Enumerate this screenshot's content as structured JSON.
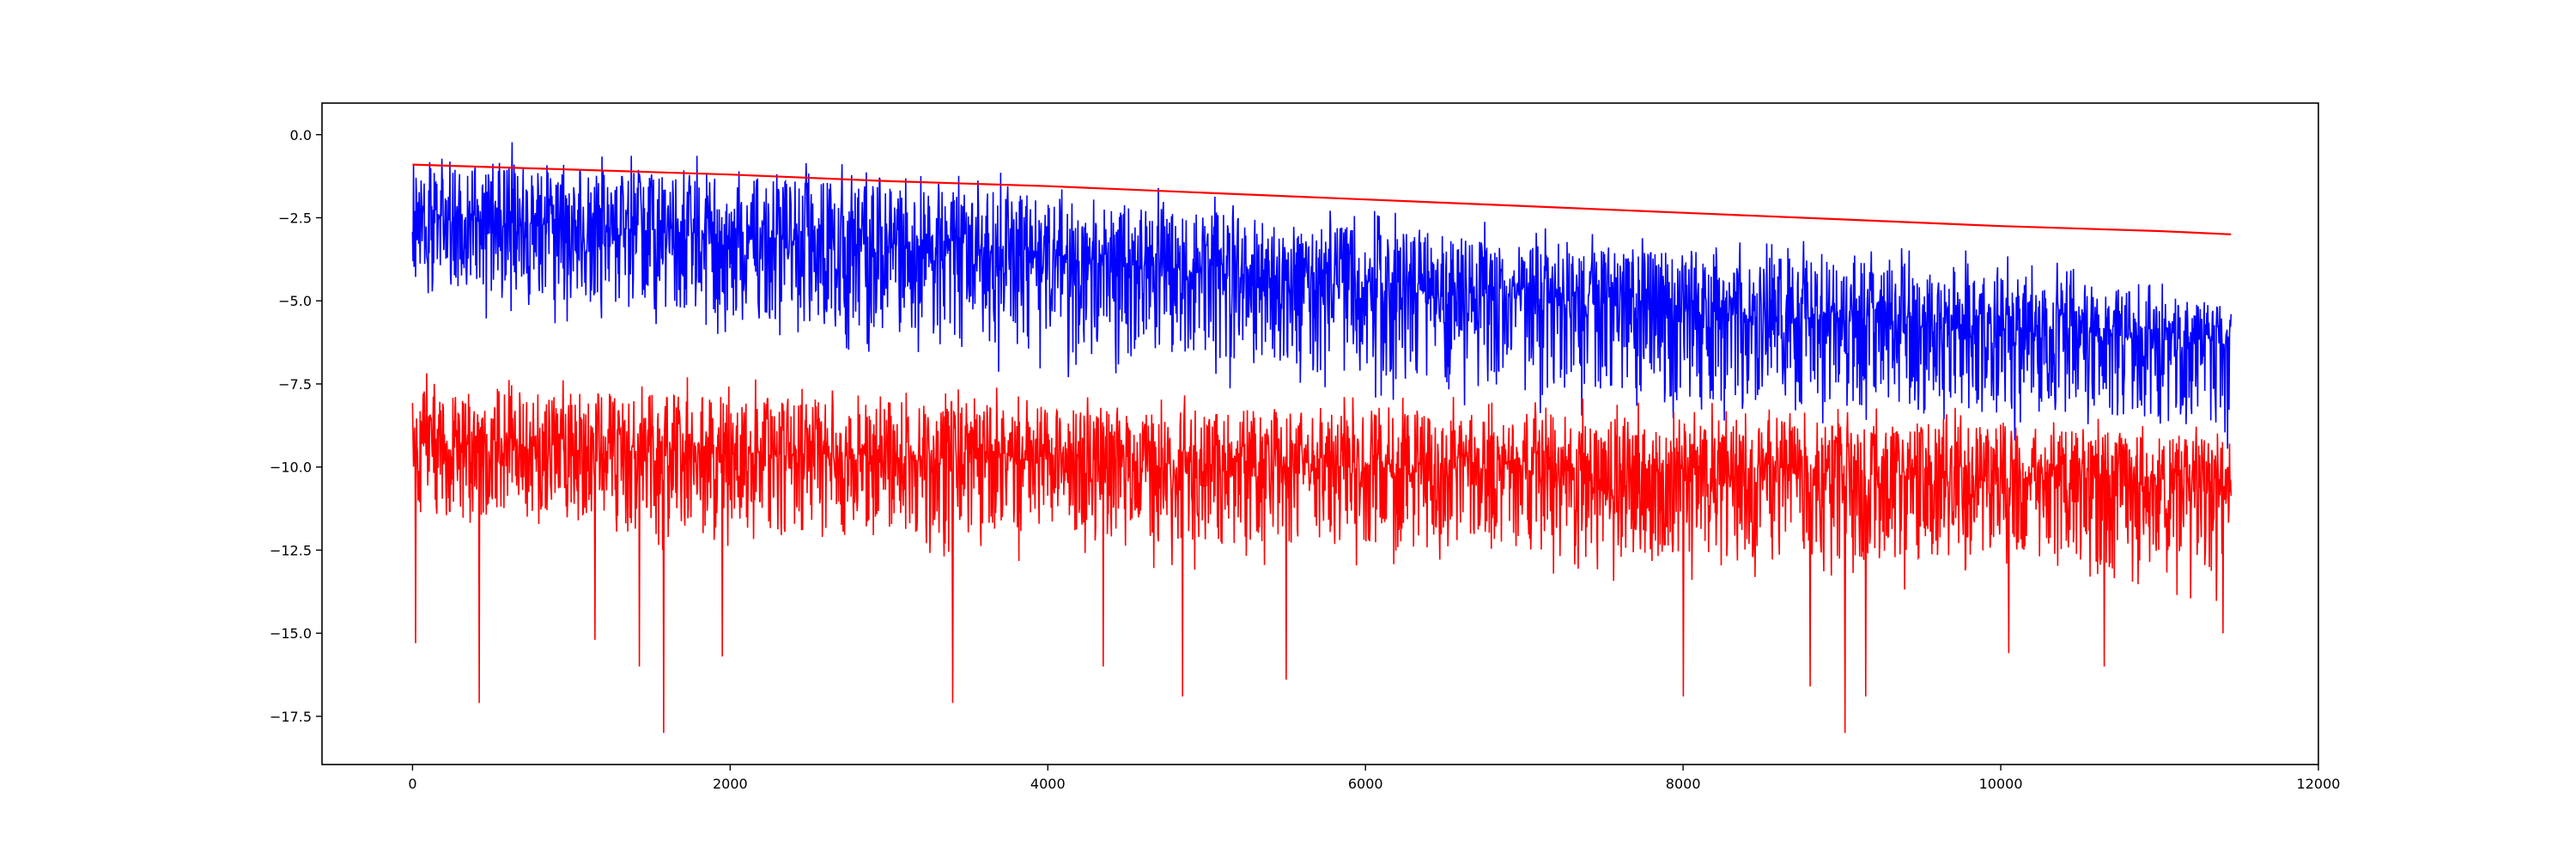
{
  "chart_data": {
    "type": "line",
    "title": "",
    "xlabel": "",
    "ylabel": "",
    "xlim": [
      -570,
      12000
    ],
    "ylim": [
      -18.95,
      0.95
    ],
    "x_ticks": [
      0,
      2000,
      4000,
      6000,
      8000,
      10000,
      12000
    ],
    "x_tick_labels": [
      "0",
      "2000",
      "4000",
      "6000",
      "8000",
      "10000",
      "12000"
    ],
    "y_ticks": [
      0.0,
      -2.5,
      -5.0,
      -7.5,
      -10.0,
      -12.5,
      -15.0,
      -17.5
    ],
    "y_tick_labels": [
      "0.0",
      "−2.5",
      "−5.0",
      "−7.5",
      "−10.0",
      "−12.5",
      "−15.0",
      "−17.5"
    ],
    "grid": false,
    "legend": "none",
    "x_range": [
      0,
      11450
    ],
    "series": [
      {
        "color": "#0000ff",
        "style": "noisy line",
        "trend": {
          "x": [
            0,
            2000,
            4000,
            6000,
            8000,
            10000,
            11450
          ],
          "y": [
            -2.5,
            -3.0,
            -3.7,
            -4.6,
            -5.3,
            -5.9,
            -6.3
          ]
        },
        "envelope_top": {
          "x": [
            0,
            2000,
            4000,
            6000,
            8000,
            10000,
            11450
          ],
          "y": [
            0.0,
            -0.6,
            -1.2,
            -2.2,
            -2.9,
            -3.5,
            -4.8
          ]
        },
        "envelope_bottom": {
          "x": [
            0,
            2000,
            4000,
            6000,
            8000,
            10000,
            11450
          ],
          "y": [
            -5.5,
            -6.3,
            -7.3,
            -8.2,
            -8.8,
            -9.3,
            -9.5
          ]
        }
      },
      {
        "color": "#ff0000",
        "style": "smooth line",
        "x": [
          0,
          1000,
          2000,
          3000,
          4000,
          5000,
          6000,
          7000,
          8000,
          9000,
          10000,
          11000,
          11450
        ],
        "y": [
          -0.9,
          -1.05,
          -1.2,
          -1.4,
          -1.55,
          -1.75,
          -1.95,
          -2.15,
          -2.35,
          -2.55,
          -2.75,
          -2.9,
          -3.0
        ]
      },
      {
        "color": "#ff0000",
        "style": "noisy line",
        "trend": {
          "x": [
            0,
            2000,
            4000,
            6000,
            8000,
            10000,
            11450
          ],
          "y": [
            -9.3,
            -9.6,
            -9.8,
            -10.0,
            -10.1,
            -10.3,
            -10.4
          ]
        },
        "envelope_top": {
          "x": [
            0,
            2000,
            4000,
            6000,
            8000,
            10000,
            11450
          ],
          "y": [
            -7.1,
            -7.3,
            -7.6,
            -7.8,
            -8.0,
            -8.2,
            -8.8
          ]
        },
        "envelope_bottom": {
          "x": [
            0,
            2000,
            4000,
            6000,
            8000,
            10000,
            11450
          ],
          "y": [
            -12.2,
            -12.6,
            -13.0,
            -13.2,
            -13.5,
            -13.8,
            -14.2
          ]
        },
        "spikes": [
          {
            "x": 20,
            "y": -15.3
          },
          {
            "x": 420,
            "y": -17.1
          },
          {
            "x": 1150,
            "y": -15.2
          },
          {
            "x": 1430,
            "y": -16.0
          },
          {
            "x": 1580,
            "y": -18.0
          },
          {
            "x": 1950,
            "y": -15.7
          },
          {
            "x": 3400,
            "y": -17.1
          },
          {
            "x": 4350,
            "y": -16.0
          },
          {
            "x": 4850,
            "y": -16.9
          },
          {
            "x": 5500,
            "y": -16.4
          },
          {
            "x": 8000,
            "y": -16.9
          },
          {
            "x": 8800,
            "y": -16.6
          },
          {
            "x": 9020,
            "y": -18.0
          },
          {
            "x": 9150,
            "y": -16.9
          },
          {
            "x": 10050,
            "y": -15.6
          },
          {
            "x": 10650,
            "y": -16.0
          },
          {
            "x": 11400,
            "y": -15.0
          }
        ]
      }
    ]
  }
}
